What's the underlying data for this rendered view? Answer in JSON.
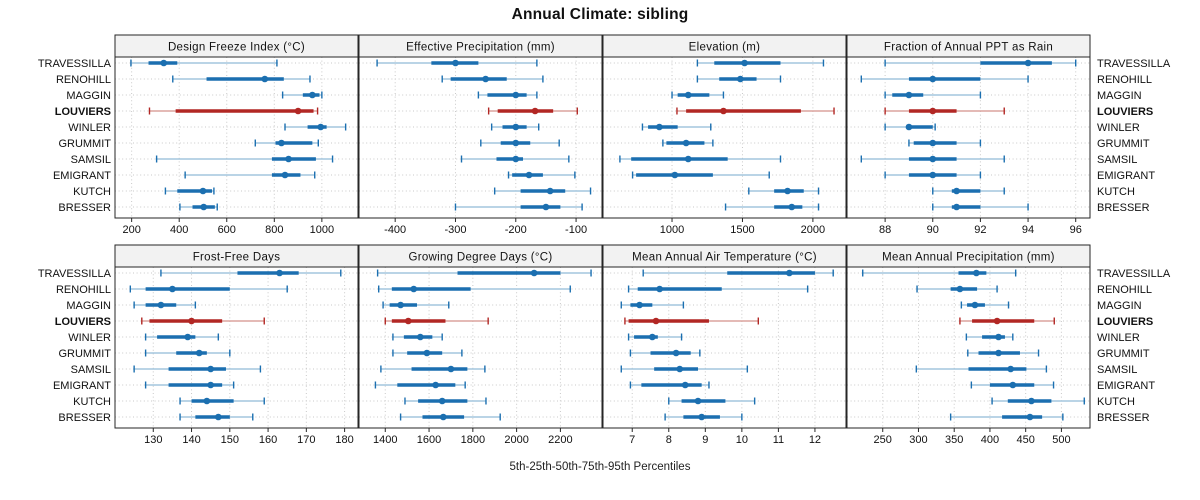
{
  "title": "Annual Climate: sibling",
  "caption": "5th-25th-50th-75th-95th Percentiles",
  "percentile_labels": [
    "5th",
    "25th",
    "50th",
    "75th",
    "95th"
  ],
  "colors": {
    "normal": "#1b6fb0",
    "normal_faint": "#a3c6de",
    "highlight": "#b22724",
    "highlight_faint": "#dba49e",
    "header_bg": "#f2f2f2",
    "border": "#262626",
    "grid": "#c9c9c9",
    "text": "#111111"
  },
  "stations": [
    {
      "name": "TRAVESSILLA",
      "highlight": false
    },
    {
      "name": "RENOHILL",
      "highlight": false
    },
    {
      "name": "MAGGIN",
      "highlight": false
    },
    {
      "name": "LOUVIERS",
      "highlight": true
    },
    {
      "name": "WINLER",
      "highlight": false
    },
    {
      "name": "GRUMMIT",
      "highlight": false
    },
    {
      "name": "SAMSIL",
      "highlight": false
    },
    {
      "name": "EMIGRANT",
      "highlight": false
    },
    {
      "name": "KUTCH",
      "highlight": false
    },
    {
      "name": "BRESSER",
      "highlight": false
    }
  ],
  "chart_data": [
    {
      "type": "interval-dotplot",
      "title": "Design Freeze Index (°C)",
      "xlim": [
        130,
        1152
      ],
      "ticks": [
        200,
        400,
        600,
        800,
        1000
      ],
      "values": [
        [
          197,
          271,
          335,
          392,
          811
        ],
        [
          373,
          515,
          760,
          840,
          950
        ],
        [
          835,
          920,
          960,
          990,
          1000
        ],
        [
          275,
          385,
          900,
          965,
          982
        ],
        [
          845,
          940,
          995,
          1020,
          1100
        ],
        [
          720,
          805,
          830,
          960,
          985
        ],
        [
          305,
          790,
          860,
          975,
          1045
        ],
        [
          425,
          790,
          845,
          910,
          970
        ],
        [
          342,
          392,
          500,
          538,
          546
        ],
        [
          403,
          456,
          503,
          550,
          560
        ]
      ]
    },
    {
      "type": "interval-dotplot",
      "title": "Effective Precipitation (mm)",
      "xlim": [
        -460,
        -57
      ],
      "ticks": [
        -400,
        -300,
        -200,
        -100
      ],
      "values": [
        [
          -430,
          -340,
          -300,
          -262,
          -165
        ],
        [
          -322,
          -308,
          -250,
          -215,
          -155
        ],
        [
          -262,
          -247,
          -200,
          -182,
          -165
        ],
        [
          -245,
          -230,
          -168,
          -138,
          -98
        ],
        [
          -240,
          -222,
          -200,
          -182,
          -162
        ],
        [
          -258,
          -225,
          -200,
          -176,
          -128
        ],
        [
          -290,
          -232,
          -200,
          -188,
          -112
        ],
        [
          -212,
          -206,
          -178,
          -155,
          -102
        ],
        [
          -235,
          -192,
          -143,
          -118,
          -76
        ],
        [
          -300,
          -192,
          -150,
          -126,
          -90
        ]
      ]
    },
    {
      "type": "interval-dotplot",
      "title": "Elevation (m)",
      "xlim": [
        510,
        2235
      ],
      "ticks": [
        1000,
        1500,
        2000
      ],
      "values": [
        [
          1180,
          1300,
          1515,
          1770,
          2075
        ],
        [
          1180,
          1335,
          1485,
          1600,
          1770
        ],
        [
          1000,
          1040,
          1115,
          1265,
          1365
        ],
        [
          1035,
          1100,
          1365,
          1915,
          2150
        ],
        [
          790,
          830,
          910,
          1040,
          1275
        ],
        [
          935,
          960,
          1100,
          1230,
          1290
        ],
        [
          630,
          710,
          1115,
          1395,
          1770
        ],
        [
          720,
          745,
          1020,
          1290,
          1690
        ],
        [
          1545,
          1725,
          1820,
          1935,
          2040
        ],
        [
          1380,
          1725,
          1850,
          1925,
          2040
        ]
      ]
    },
    {
      "type": "interval-dotplot",
      "title": "Fraction of Annual PPT as Rain",
      "xlim": [
        86.4,
        96.6
      ],
      "ticks": [
        88,
        90,
        92,
        94,
        96
      ],
      "values": [
        [
          88,
          92,
          94,
          95,
          96
        ],
        [
          87,
          89,
          90,
          92,
          94
        ],
        [
          88,
          88.3,
          89,
          89.6,
          92
        ],
        [
          88,
          89,
          90,
          91,
          93
        ],
        [
          88,
          88.9,
          89,
          90,
          90.1
        ],
        [
          89,
          89.2,
          90,
          91,
          92
        ],
        [
          87,
          89,
          90,
          91,
          93
        ],
        [
          88,
          89,
          90,
          91,
          92
        ],
        [
          90,
          90.8,
          91,
          92,
          93
        ],
        [
          90,
          90.8,
          91,
          92,
          94
        ]
      ]
    },
    {
      "type": "interval-dotplot",
      "title": "Frost-Free Days",
      "xlim": [
        120,
        183.5
      ],
      "ticks": [
        130,
        140,
        150,
        160,
        170,
        180
      ],
      "values": [
        [
          132,
          152,
          163,
          168,
          179
        ],
        [
          124,
          128,
          135,
          150,
          165
        ],
        [
          125,
          128,
          132,
          136,
          141
        ],
        [
          127,
          129,
          140,
          148,
          159
        ],
        [
          128,
          131,
          139,
          141,
          147
        ],
        [
          128,
          136,
          142,
          144,
          150
        ],
        [
          125,
          134,
          145,
          149,
          158
        ],
        [
          128,
          134,
          145,
          148,
          151
        ],
        [
          137,
          140,
          144,
          151,
          159
        ],
        [
          137,
          141,
          147,
          150,
          156
        ]
      ]
    },
    {
      "type": "interval-dotplot",
      "title": "Growing Degree Days (°C)",
      "xlim": [
        1280,
        2390
      ],
      "ticks": [
        1400,
        1600,
        1800,
        2000,
        2200
      ],
      "values": [
        [
          1365,
          1730,
          2080,
          2200,
          2340
        ],
        [
          1370,
          1430,
          1530,
          1790,
          2245
        ],
        [
          1390,
          1420,
          1470,
          1545,
          1690
        ],
        [
          1400,
          1430,
          1505,
          1675,
          1870
        ],
        [
          1435,
          1485,
          1560,
          1615,
          1660
        ],
        [
          1435,
          1500,
          1590,
          1660,
          1750
        ],
        [
          1380,
          1520,
          1700,
          1775,
          1855
        ],
        [
          1355,
          1455,
          1630,
          1720,
          1765
        ],
        [
          1490,
          1550,
          1660,
          1775,
          1860
        ],
        [
          1470,
          1570,
          1665,
          1760,
          1925
        ]
      ]
    },
    {
      "type": "interval-dotplot",
      "title": "Mean Annual Air Temperature (°C)",
      "xlim": [
        6.2,
        12.85
      ],
      "ticks": [
        7,
        8,
        9,
        10,
        11,
        12
      ],
      "values": [
        [
          7.3,
          9.6,
          11.3,
          12.0,
          12.5
        ],
        [
          6.9,
          7.15,
          7.75,
          9.45,
          11.8
        ],
        [
          6.7,
          6.95,
          7.2,
          7.55,
          8.4
        ],
        [
          6.8,
          6.9,
          7.65,
          9.1,
          10.45
        ],
        [
          6.9,
          7.05,
          7.55,
          7.7,
          8.35
        ],
        [
          6.95,
          7.5,
          8.2,
          8.6,
          8.85
        ],
        [
          6.7,
          7.6,
          8.3,
          8.8,
          10.15
        ],
        [
          6.95,
          7.25,
          8.45,
          8.9,
          9.1
        ],
        [
          8.0,
          8.35,
          8.8,
          9.55,
          10.35
        ],
        [
          7.9,
          8.4,
          8.9,
          9.4,
          10.0
        ]
      ]
    },
    {
      "type": "interval-dotplot",
      "title": "Mean Annual Precipitation (mm)",
      "xlim": [
        200,
        540
      ],
      "ticks": [
        250,
        300,
        350,
        400,
        450,
        500
      ],
      "values": [
        [
          222,
          356,
          381,
          395,
          436
        ],
        [
          298,
          345,
          358,
          382,
          410
        ],
        [
          360,
          368,
          379,
          393,
          426
        ],
        [
          358,
          375,
          410,
          462,
          490
        ],
        [
          367,
          389,
          412,
          421,
          432
        ],
        [
          369,
          384,
          412,
          442,
          468
        ],
        [
          297,
          370,
          429,
          451,
          479
        ],
        [
          374,
          400,
          432,
          462,
          489
        ],
        [
          403,
          425,
          458,
          486,
          532
        ],
        [
          345,
          417,
          456,
          473,
          502
        ]
      ]
    }
  ]
}
